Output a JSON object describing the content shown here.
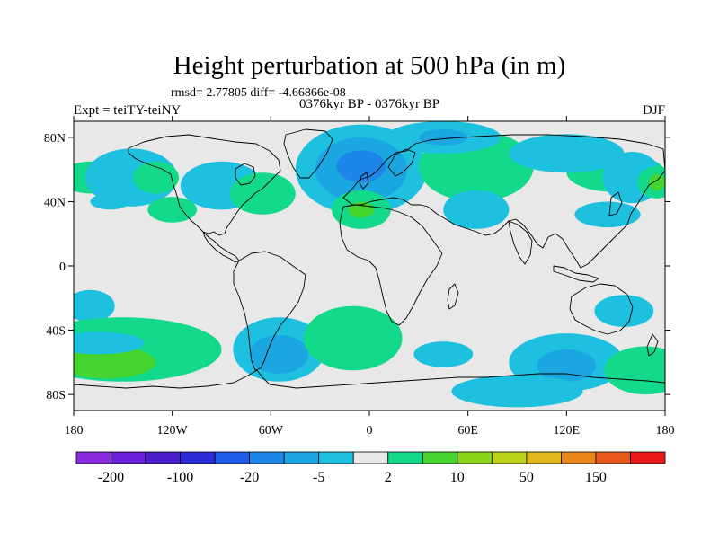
{
  "chart_data": {
    "type": "heatmap",
    "title": "Height perturbation at 500 hPa (in m)",
    "stats_line": "rmsd= 2.77805 diff= -4.66866e-08",
    "subtitle": "0376kyr BP - 0376kyr BP",
    "left_label": "Expt = teiTY-teiNY",
    "right_label": "DJF",
    "xlim": [
      -180,
      180
    ],
    "ylim": [
      -90,
      90
    ],
    "x_ticks": [
      {
        "value": -180,
        "label": "180"
      },
      {
        "value": -120,
        "label": "120W"
      },
      {
        "value": -60,
        "label": "60W"
      },
      {
        "value": 0,
        "label": "0"
      },
      {
        "value": 60,
        "label": "60E"
      },
      {
        "value": 120,
        "label": "120E"
      },
      {
        "value": 180,
        "label": "180"
      }
    ],
    "y_ticks": [
      {
        "value": 80,
        "label": "80N"
      },
      {
        "value": 40,
        "label": "40N"
      },
      {
        "value": 0,
        "label": "0"
      },
      {
        "value": -40,
        "label": "40S"
      },
      {
        "value": -80,
        "label": "80S"
      }
    ],
    "colorbar": {
      "colors": [
        "#8a2be2",
        "#6a1fd8",
        "#4b1fcc",
        "#2b2bd8",
        "#1e5be8",
        "#1e86e8",
        "#1aa6e0",
        "#1ec0e0",
        "#e8e8e8",
        "#13d98a",
        "#46d52e",
        "#8ad517",
        "#bcd51a",
        "#e0b81a",
        "#e8861a",
        "#e8561a",
        "#e81a1a"
      ],
      "labels": [
        {
          "boundary": 1,
          "text": "-200"
        },
        {
          "boundary": 3,
          "text": "-100"
        },
        {
          "boundary": 5,
          "text": "-20"
        },
        {
          "boundary": 7,
          "text": "-5"
        },
        {
          "boundary": 9,
          "text": "2"
        },
        {
          "boundary": 11,
          "text": "10"
        },
        {
          "boundary": 13,
          "text": "50"
        },
        {
          "boundary": 15,
          "text": "150"
        }
      ]
    },
    "background_color": "#e8e8e8",
    "anomalies": [
      {
        "lon": 150,
        "lat": 58,
        "rlon": 30,
        "rlat": 12,
        "level": 9
      },
      {
        "lon": -170,
        "lat": 55,
        "rlon": 18,
        "rlat": 10,
        "level": 9
      },
      {
        "lon": -145,
        "lat": 55,
        "rlon": 28,
        "rlat": 18,
        "level": 7
      },
      {
        "lon": -130,
        "lat": 55,
        "rlon": 14,
        "rlat": 10,
        "level": 9
      },
      {
        "lon": -158,
        "lat": 40,
        "rlon": 12,
        "rlat": 5,
        "level": 7
      },
      {
        "lon": -120,
        "lat": 35,
        "rlon": 15,
        "rlat": 8,
        "level": 9
      },
      {
        "lon": -90,
        "lat": 50,
        "rlon": 25,
        "rlat": 15,
        "level": 7
      },
      {
        "lon": -65,
        "lat": 45,
        "rlon": 20,
        "rlat": 13,
        "level": 9
      },
      {
        "lon": -5,
        "lat": 60,
        "rlon": 40,
        "rlat": 28,
        "level": 7
      },
      {
        "lon": -5,
        "lat": 60,
        "rlon": 28,
        "rlat": 20,
        "level": 6
      },
      {
        "lon": -5,
        "lat": 62,
        "rlon": 15,
        "rlat": 10,
        "level": 5
      },
      {
        "lon": -5,
        "lat": 35,
        "rlon": 18,
        "rlat": 12,
        "level": 9
      },
      {
        "lon": -5,
        "lat": 35,
        "rlon": 8,
        "rlat": 5,
        "level": 10
      },
      {
        "lon": 65,
        "lat": 62,
        "rlon": 35,
        "rlat": 22,
        "level": 9
      },
      {
        "lon": 45,
        "lat": 80,
        "rlon": 35,
        "rlat": 10,
        "level": 7
      },
      {
        "lon": 45,
        "lat": 80,
        "rlon": 15,
        "rlat": 5,
        "level": 6
      },
      {
        "lon": 120,
        "lat": 70,
        "rlon": 35,
        "rlat": 12,
        "level": 7
      },
      {
        "lon": 160,
        "lat": 55,
        "rlon": 18,
        "rlat": 16,
        "level": 7
      },
      {
        "lon": 175,
        "lat": 52,
        "rlon": 12,
        "rlat": 10,
        "level": 9
      },
      {
        "lon": 175,
        "lat": 52,
        "rlon": 5,
        "rlat": 5,
        "level": 10
      },
      {
        "lon": 65,
        "lat": 35,
        "rlon": 20,
        "rlat": 12,
        "level": 7
      },
      {
        "lon": 145,
        "lat": 32,
        "rlon": 20,
        "rlat": 8,
        "level": 7
      },
      {
        "lon": -170,
        "lat": -25,
        "rlon": 15,
        "rlat": 10,
        "level": 7
      },
      {
        "lon": -150,
        "lat": -52,
        "rlon": 60,
        "rlat": 20,
        "level": 9
      },
      {
        "lon": -160,
        "lat": -60,
        "rlon": 30,
        "rlat": 10,
        "level": 10
      },
      {
        "lon": -165,
        "lat": -48,
        "rlon": 28,
        "rlat": 7,
        "level": 7
      },
      {
        "lon": -55,
        "lat": -52,
        "rlon": 28,
        "rlat": 20,
        "level": 7
      },
      {
        "lon": -55,
        "lat": -55,
        "rlon": 18,
        "rlat": 12,
        "level": 6
      },
      {
        "lon": -10,
        "lat": -45,
        "rlon": 30,
        "rlat": 20,
        "level": 9
      },
      {
        "lon": 45,
        "lat": -55,
        "rlon": 18,
        "rlat": 8,
        "level": 7
      },
      {
        "lon": 120,
        "lat": -60,
        "rlon": 35,
        "rlat": 18,
        "level": 7
      },
      {
        "lon": 120,
        "lat": -62,
        "rlon": 18,
        "rlat": 10,
        "level": 6
      },
      {
        "lon": 90,
        "lat": -78,
        "rlon": 40,
        "rlat": 10,
        "level": 7
      },
      {
        "lon": 168,
        "lat": -65,
        "rlon": 25,
        "rlat": 15,
        "level": 9
      },
      {
        "lon": 155,
        "lat": -28,
        "rlon": 18,
        "rlat": 10,
        "level": 7
      }
    ]
  }
}
